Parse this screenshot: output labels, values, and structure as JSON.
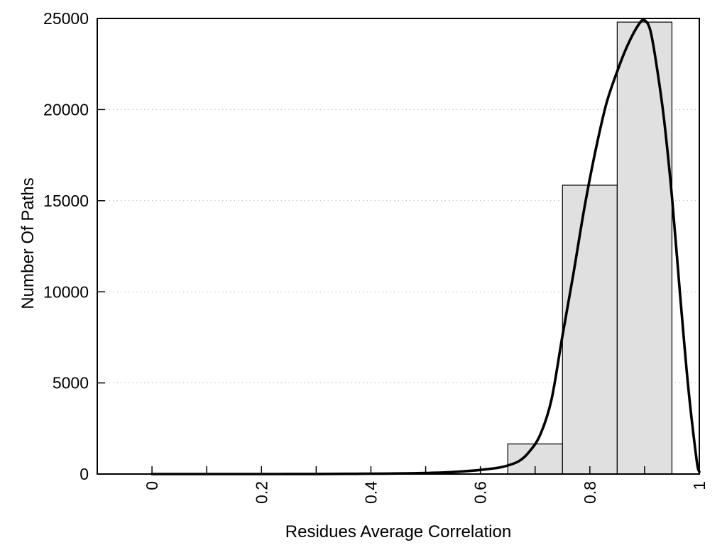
{
  "figure": {
    "background": "#ffffff"
  },
  "chart_data": {
    "type": "bar",
    "subtype": "histogram-with-density-curve",
    "title": "",
    "xlabel": "Residues Average Correlation",
    "ylabel": "Number Of Paths",
    "xlim": [
      -0.1,
      1.0
    ],
    "ylim": [
      0,
      25000
    ],
    "grid": "horizontal-dotted",
    "legend": "none",
    "x_major_ticks": [
      0,
      0.2,
      0.4,
      0.6,
      0.8,
      1
    ],
    "x_tick_labels": [
      "0",
      "0.2",
      "0.4",
      "0.6",
      "0.8",
      "1"
    ],
    "x_minor_ticks": [
      0.1,
      0.3,
      0.5,
      0.7,
      0.9
    ],
    "y_ticks": [
      0,
      5000,
      10000,
      15000,
      20000,
      25000
    ],
    "y_tick_labels": [
      "0",
      "5000",
      "10000",
      "15000",
      "20000",
      "25000"
    ],
    "y_gridlines": [
      5000,
      10000,
      15000,
      20000
    ],
    "bars": [
      {
        "x0": 0.65,
        "x1": 0.75,
        "value": 1650
      },
      {
        "x0": 0.75,
        "x1": 0.85,
        "value": 15850
      },
      {
        "x0": 0.85,
        "x1": 0.95,
        "value": 24800
      }
    ],
    "curve": {
      "name": "density-fit",
      "points": [
        [
          0.0,
          0
        ],
        [
          0.05,
          0
        ],
        [
          0.1,
          0
        ],
        [
          0.15,
          0
        ],
        [
          0.2,
          0
        ],
        [
          0.25,
          2
        ],
        [
          0.3,
          5
        ],
        [
          0.35,
          10
        ],
        [
          0.4,
          18
        ],
        [
          0.45,
          30
        ],
        [
          0.5,
          55
        ],
        [
          0.54,
          95
        ],
        [
          0.58,
          170
        ],
        [
          0.61,
          260
        ],
        [
          0.64,
          390
        ],
        [
          0.67,
          700
        ],
        [
          0.69,
          1250
        ],
        [
          0.71,
          2200
        ],
        [
          0.73,
          4100
        ],
        [
          0.75,
          7600
        ],
        [
          0.77,
          11000
        ],
        [
          0.79,
          14600
        ],
        [
          0.81,
          17700
        ],
        [
          0.83,
          20300
        ],
        [
          0.85,
          22100
        ],
        [
          0.87,
          23600
        ],
        [
          0.89,
          24700
        ],
        [
          0.9,
          24900
        ],
        [
          0.91,
          24400
        ],
        [
          0.92,
          22800
        ],
        [
          0.935,
          19600
        ],
        [
          0.95,
          15200
        ],
        [
          0.965,
          9800
        ],
        [
          0.98,
          4700
        ],
        [
          0.995,
          800
        ],
        [
          1.0,
          120
        ]
      ]
    },
    "colors": {
      "bar_fill": "#e0e0e0",
      "bar_border": "#000000",
      "curve": "#000000",
      "grid": "#bbbbbb",
      "axis": "#000000",
      "text": "#000000",
      "background": "#ffffff"
    }
  }
}
